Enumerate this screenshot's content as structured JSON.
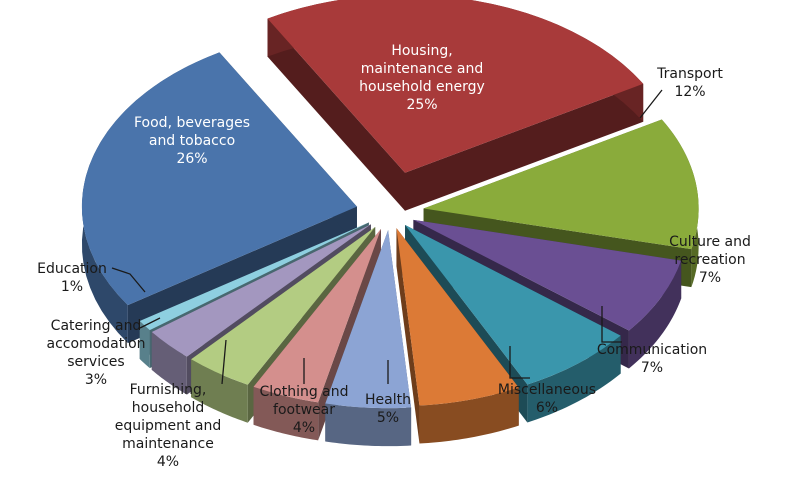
{
  "chart_data": {
    "type": "pie",
    "title": "",
    "style": "exploded-3d",
    "slices": [
      {
        "label": "Housing, maintenance and household energy",
        "value": 25,
        "pct": "25%",
        "color": "#a83a3a"
      },
      {
        "label": "Transport",
        "value": 12,
        "pct": "12%",
        "color": "#8aab3b"
      },
      {
        "label": "Culture and recreation",
        "value": 7,
        "pct": "7%",
        "color": "#6a4f93"
      },
      {
        "label": "Communication",
        "value": 7,
        "pct": "7%",
        "color": "#3a96ac"
      },
      {
        "label": "Miscellaneous",
        "value": 6,
        "pct": "6%",
        "color": "#dc7a36"
      },
      {
        "label": "Health",
        "value": 5,
        "pct": "5%",
        "color": "#8ca4d4"
      },
      {
        "label": "Clothing and footwear",
        "value": 4,
        "pct": "4%",
        "color": "#d48f8d"
      },
      {
        "label": "Furnishing, household equipment and maintenance",
        "value": 4,
        "pct": "4%",
        "color": "#b3cc82"
      },
      {
        "label": "Catering and accomodation services",
        "value": 3,
        "pct": "3%",
        "color": "#a397bf"
      },
      {
        "label": "Education",
        "value": 1,
        "pct": "1%",
        "color": "#8ecfe0"
      },
      {
        "label": "Food, beverages and tobacco",
        "value": 26,
        "pct": "26%",
        "color": "#4a74ab"
      }
    ]
  }
}
